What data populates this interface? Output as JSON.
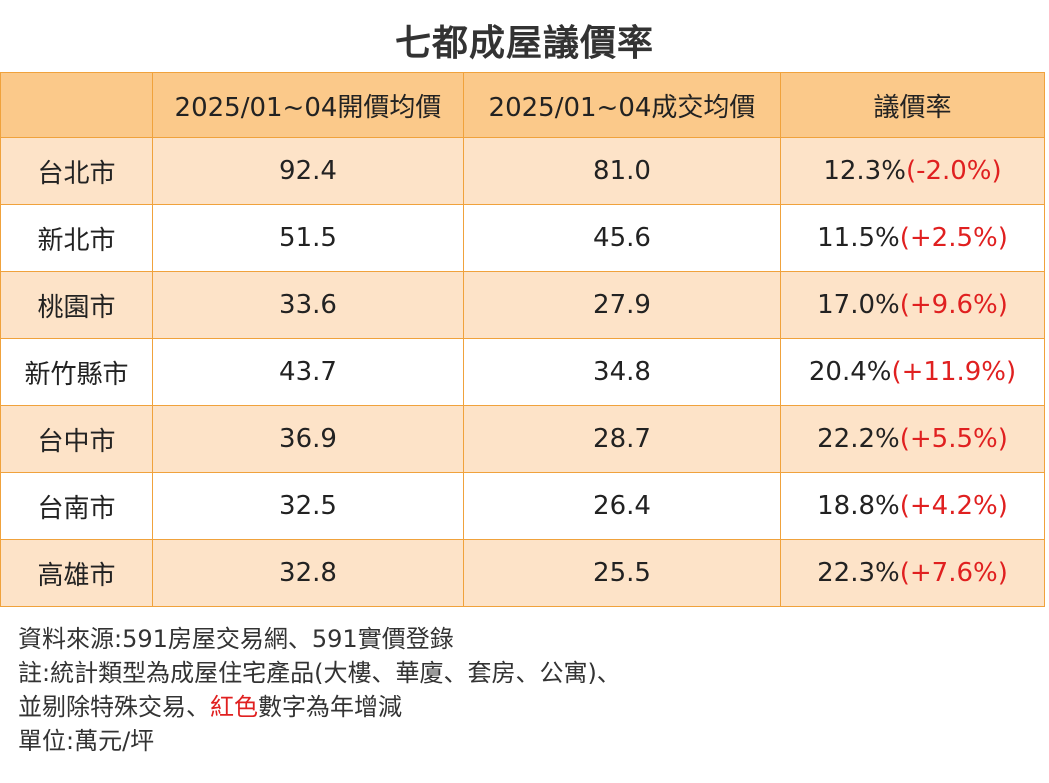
{
  "title": "七都成屋議價率",
  "headers": [
    "",
    "2025/01~04開價均價",
    "2025/01~04成交均價",
    "議價率"
  ],
  "chart_data": {
    "type": "table",
    "title": "七都成屋議價率",
    "columns": [
      "",
      "2025/01~04開價均價",
      "2025/01~04成交均價",
      "議價率"
    ],
    "rows": [
      {
        "city": "台北市",
        "ask": "92.4",
        "deal": "81.0",
        "rate": "12.3%",
        "change": "(-2.0%)"
      },
      {
        "city": "新北市",
        "ask": "51.5",
        "deal": "45.6",
        "rate": "11.5%",
        "change": "(+2.5%)"
      },
      {
        "city": "桃園市",
        "ask": "33.6",
        "deal": "27.9",
        "rate": "17.0%",
        "change": "(+9.6%)"
      },
      {
        "city": "新竹縣市",
        "ask": "43.7",
        "deal": "34.8",
        "rate": "20.4%",
        "change": "(+11.9%)"
      },
      {
        "city": "台中市",
        "ask": "36.9",
        "deal": "28.7",
        "rate": "22.2%",
        "change": "(+5.5%)"
      },
      {
        "city": "台南市",
        "ask": "32.5",
        "deal": "26.4",
        "rate": "18.8%",
        "change": "(+4.2%)"
      },
      {
        "city": "高雄市",
        "ask": "32.8",
        "deal": "25.5",
        "rate": "22.3%",
        "change": "(+7.6%)"
      }
    ]
  },
  "notes": {
    "source": "資料來源:591房屋交易網、591實價登錄",
    "note1": "註:統計類型為成屋住宅產品(大樓、華廈、套房、公寓)、",
    "note2_pre": "並剔除特殊交易、",
    "note2_red": "紅色",
    "note2_post": "數字為年增減",
    "unit": "單位:萬元/坪"
  },
  "colors": {
    "header_bg": "#fbc98a",
    "odd_row_bg": "#fde3c8",
    "even_row_bg": "#ffffff",
    "border": "#f0a23c",
    "delta": "#e02020"
  }
}
